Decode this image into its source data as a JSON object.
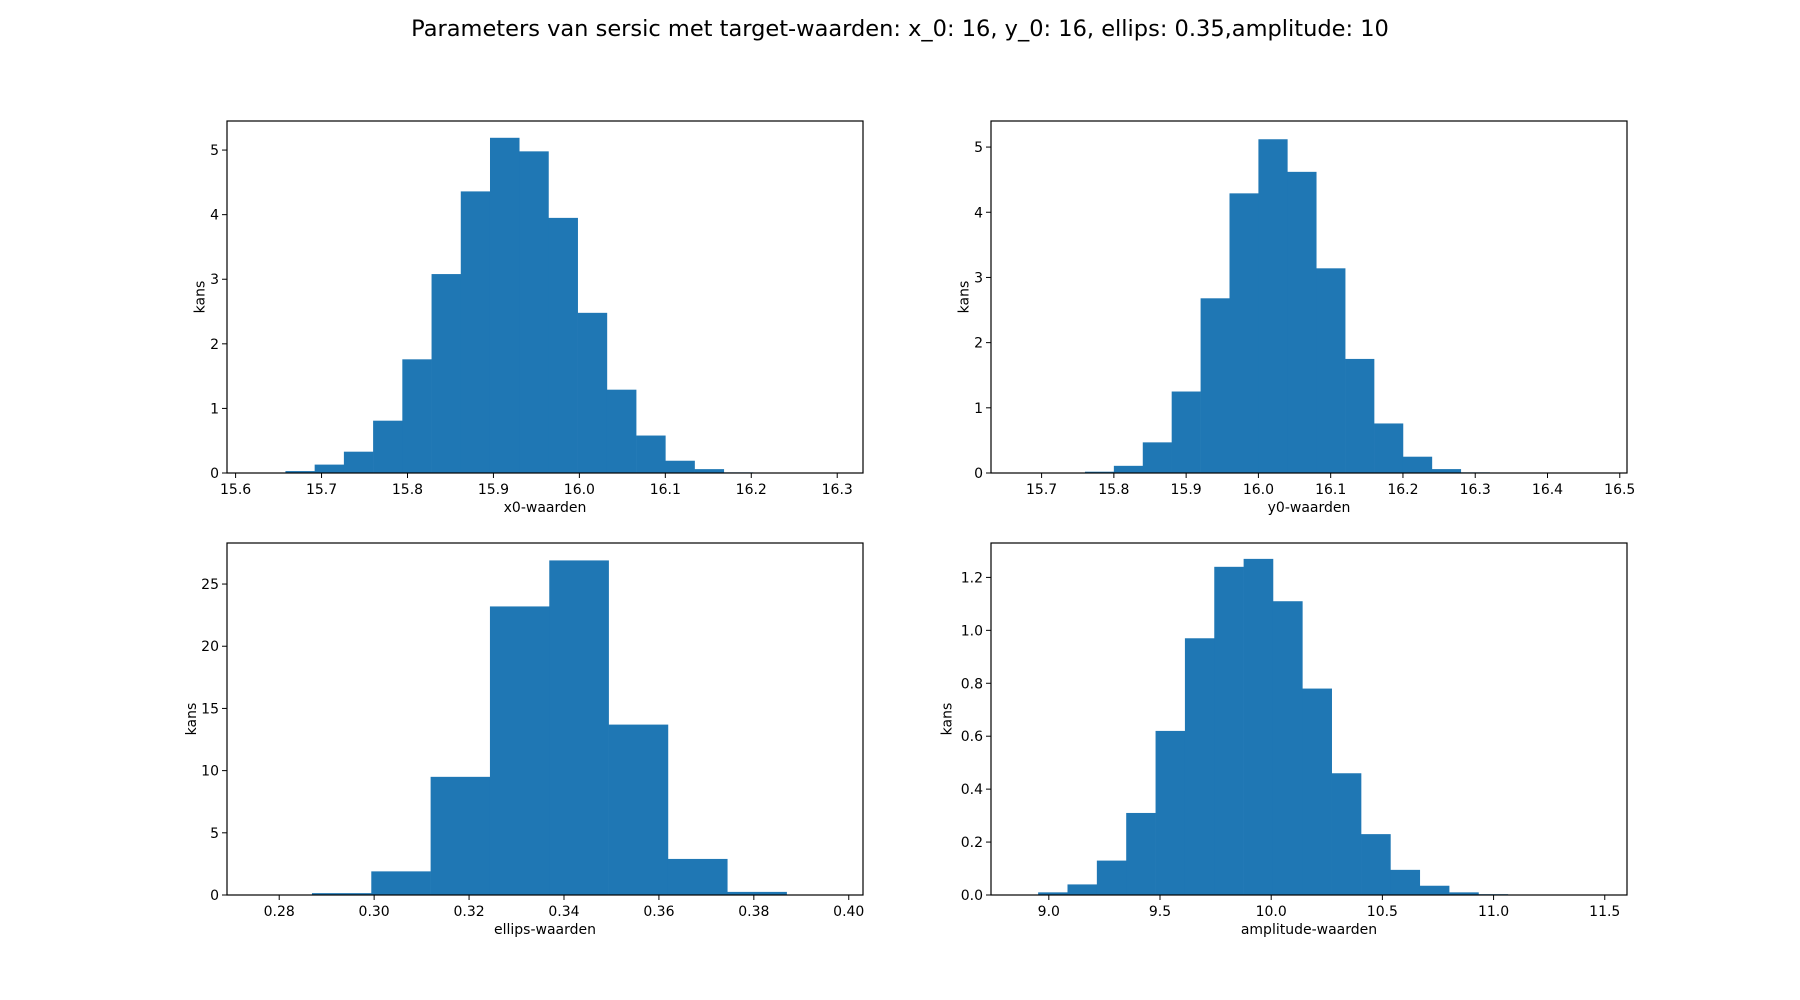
{
  "figure": {
    "title": "Parameters van sersic met target-waarden: x_0: 16, y_0: 16, ellips: 0.35,amplitude: 10"
  },
  "chart_data": [
    {
      "type": "bar",
      "name": "x0",
      "xlabel": "x0-waarden",
      "ylabel": "kans",
      "xlim": [
        15.59,
        16.33
      ],
      "ylim": [
        0,
        5.45
      ],
      "xticks": [
        15.6,
        15.7,
        15.8,
        15.9,
        16.0,
        16.1,
        16.2,
        16.3
      ],
      "xtick_labels": [
        "15.6",
        "15.7",
        "15.8",
        "15.9",
        "16.0",
        "16.1",
        "16.2",
        "16.3"
      ],
      "yticks": [
        0,
        1,
        2,
        3,
        4,
        5
      ],
      "ytick_labels": [
        "0",
        "1",
        "2",
        "3",
        "4",
        "5"
      ],
      "bin_edges": [
        15.59,
        15.624,
        15.658,
        15.692,
        15.726,
        15.76,
        15.794,
        15.828,
        15.862,
        15.896,
        15.93,
        15.964,
        15.998,
        16.032,
        16.066,
        16.1,
        16.134,
        16.168,
        16.202,
        16.236,
        16.27,
        16.304
      ],
      "values": [
        0,
        0,
        0.03,
        0.13,
        0.33,
        0.81,
        1.76,
        3.08,
        4.36,
        5.19,
        4.98,
        3.95,
        2.48,
        1.29,
        0.58,
        0.19,
        0.06,
        0.01,
        0,
        0,
        0
      ],
      "grid": false
    },
    {
      "type": "bar",
      "name": "y0",
      "xlabel": "y0-waarden",
      "ylabel": "kans",
      "xlim": [
        15.63,
        16.51
      ],
      "ylim": [
        0,
        5.4
      ],
      "xticks": [
        15.7,
        15.8,
        15.9,
        16.0,
        16.1,
        16.2,
        16.3,
        16.4,
        16.5
      ],
      "xtick_labels": [
        "15.7",
        "15.8",
        "15.9",
        "16.0",
        "16.1",
        "16.2",
        "16.3",
        "16.4",
        "16.5"
      ],
      "yticks": [
        0,
        1,
        2,
        3,
        4,
        5
      ],
      "ytick_labels": [
        "0",
        "1",
        "2",
        "3",
        "4",
        "5"
      ],
      "bin_edges": [
        15.64,
        15.68,
        15.72,
        15.76,
        15.8,
        15.84,
        15.88,
        15.92,
        15.96,
        16.0,
        16.04,
        16.08,
        16.12,
        16.16,
        16.2,
        16.24,
        16.28,
        16.32,
        16.36,
        16.4,
        16.44,
        16.48
      ],
      "values": [
        0,
        0,
        0,
        0.02,
        0.11,
        0.47,
        1.25,
        2.68,
        4.29,
        5.12,
        4.62,
        3.14,
        1.75,
        0.76,
        0.25,
        0.06,
        0.01,
        0,
        0,
        0,
        0
      ],
      "grid": false
    },
    {
      "type": "bar",
      "name": "ellips",
      "xlabel": "ellips-waarden",
      "ylabel": "kans",
      "xlim": [
        0.269,
        0.403
      ],
      "ylim": [
        0,
        28.3
      ],
      "xticks": [
        0.28,
        0.3,
        0.32,
        0.34,
        0.36,
        0.38,
        0.4
      ],
      "xtick_labels": [
        "0.28",
        "0.30",
        "0.32",
        "0.34",
        "0.36",
        "0.38",
        "0.40"
      ],
      "yticks": [
        0,
        5,
        10,
        15,
        20,
        25
      ],
      "ytick_labels": [
        "0",
        "5",
        "10",
        "15",
        "20",
        "25"
      ],
      "bin_edges": [
        0.2744,
        0.2869,
        0.2994,
        0.3119,
        0.3244,
        0.3369,
        0.3494,
        0.3619,
        0.3744,
        0.3869,
        0.3994
      ],
      "values": [
        0,
        0.15,
        1.9,
        9.5,
        23.2,
        26.9,
        13.7,
        2.9,
        0.25,
        0
      ],
      "grid": false
    },
    {
      "type": "bar",
      "name": "amplitude",
      "xlabel": "amplitude-waarden",
      "ylabel": "kans",
      "xlim": [
        8.74,
        11.6
      ],
      "ylim": [
        0,
        1.33
      ],
      "xticks": [
        9.0,
        9.5,
        10.0,
        10.5,
        11.0,
        11.5
      ],
      "xtick_labels": [
        "9.0",
        "9.5",
        "10.0",
        "10.5",
        "11.0",
        "11.5"
      ],
      "yticks": [
        0,
        0.2,
        0.4,
        0.6,
        0.8,
        1.0,
        1.2
      ],
      "ytick_labels": [
        "0.0",
        "0.2",
        "0.4",
        "0.6",
        "0.8",
        "1.0",
        "1.2"
      ],
      "bin_edges": [
        8.82,
        8.952,
        9.084,
        9.216,
        9.348,
        9.48,
        9.612,
        9.744,
        9.876,
        10.008,
        10.14,
        10.272,
        10.404,
        10.536,
        10.668,
        10.8,
        10.932,
        11.064,
        11.196,
        11.328,
        11.46,
        11.592
      ],
      "values": [
        0,
        0.01,
        0.04,
        0.13,
        0.31,
        0.62,
        0.97,
        1.24,
        1.27,
        1.11,
        0.78,
        0.46,
        0.23,
        0.095,
        0.035,
        0.01,
        0.003,
        0,
        0,
        0,
        0
      ],
      "grid": false
    }
  ]
}
